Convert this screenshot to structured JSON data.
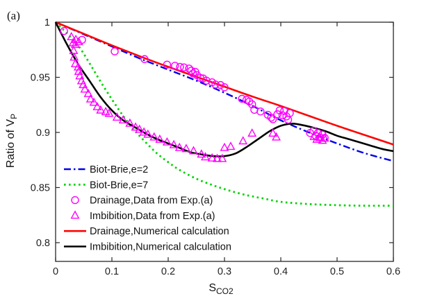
{
  "figure": {
    "panel_label": "(a)",
    "background": "#ffffff"
  },
  "chart_data": {
    "type": "line",
    "title": "",
    "grid": false,
    "axis_color": "#262626",
    "marker_color": "#ff00ff",
    "x_axis": {
      "label_main": "S",
      "label_sub": "CO2",
      "range": [
        0,
        0.6
      ],
      "ticks": [
        0,
        0.1,
        0.2,
        0.3,
        0.4,
        0.5,
        0.6
      ],
      "tick_labels": [
        "0",
        "0.1",
        "0.2",
        "0.3",
        "0.4",
        "0.5",
        "0.6"
      ]
    },
    "y_axis": {
      "label_main": "Ratio of V",
      "label_sub": "P",
      "range": [
        0.783,
        1.0
      ],
      "ticks": [
        0.8,
        0.85,
        0.9,
        0.95,
        1.0
      ],
      "tick_labels": [
        "0.8",
        "0.85",
        "0.9",
        "0.95",
        "1"
      ]
    },
    "legend_position": "lower-left-inside",
    "series": [
      {
        "id": "biot-brie-e2",
        "label": "Biot-Brie,e=2",
        "type": "line",
        "color": "#0000ee",
        "dash": "dashdot",
        "width": 2.4,
        "x": [
          0,
          0.05,
          0.1,
          0.15,
          0.2,
          0.25,
          0.3,
          0.35,
          0.4,
          0.45,
          0.5,
          0.55,
          0.6
        ],
        "y": [
          1.0,
          0.989,
          0.978,
          0.967,
          0.957,
          0.947,
          0.936,
          0.924,
          0.911,
          0.9,
          0.89,
          0.881,
          0.874
        ]
      },
      {
        "id": "biot-brie-e7",
        "label": "Biot-Brie,e=7",
        "type": "line",
        "color": "#00d400",
        "dash": "dot",
        "width": 2.8,
        "x": [
          0,
          0.02,
          0.04,
          0.06,
          0.08,
          0.1,
          0.12,
          0.14,
          0.16,
          0.18,
          0.2,
          0.22,
          0.25,
          0.28,
          0.31,
          0.34,
          0.37,
          0.4,
          0.45,
          0.5,
          0.55,
          0.6
        ],
        "y": [
          1.0,
          0.99,
          0.979,
          0.963,
          0.946,
          0.93,
          0.915,
          0.902,
          0.891,
          0.881,
          0.873,
          0.866,
          0.858,
          0.852,
          0.847,
          0.843,
          0.84,
          0.837,
          0.835,
          0.834,
          0.8335,
          0.8335
        ]
      },
      {
        "id": "drainage-data",
        "label": "Drainage,Data from Exp.(a)",
        "type": "scatter",
        "color": "#ff00ff",
        "marker": "circle",
        "points": [
          [
            0.015,
            0.992
          ],
          [
            0.047,
            0.984
          ],
          [
            0.105,
            0.9735
          ],
          [
            0.158,
            0.9665
          ],
          [
            0.198,
            0.9615
          ],
          [
            0.212,
            0.9605
          ],
          [
            0.221,
            0.9595
          ],
          [
            0.228,
            0.959
          ],
          [
            0.237,
            0.958
          ],
          [
            0.241,
            0.956
          ],
          [
            0.244,
            0.9535
          ],
          [
            0.248,
            0.955
          ],
          [
            0.251,
            0.952
          ],
          [
            0.257,
            0.9495
          ],
          [
            0.262,
            0.949
          ],
          [
            0.268,
            0.947
          ],
          [
            0.278,
            0.9455
          ],
          [
            0.284,
            0.9435
          ],
          [
            0.293,
            0.943
          ],
          [
            0.3,
            0.941
          ],
          [
            0.331,
            0.9305
          ],
          [
            0.339,
            0.9295
          ],
          [
            0.344,
            0.928
          ],
          [
            0.349,
            0.9255
          ],
          [
            0.353,
            0.9205
          ],
          [
            0.364,
            0.919
          ],
          [
            0.377,
            0.916
          ],
          [
            0.383,
            0.9135
          ],
          [
            0.386,
            0.912
          ],
          [
            0.394,
            0.9165
          ],
          [
            0.398,
            0.92
          ],
          [
            0.403,
            0.9155
          ],
          [
            0.406,
            0.9195
          ],
          [
            0.41,
            0.9145
          ],
          [
            0.413,
            0.9115
          ],
          [
            0.416,
            0.9175
          ],
          [
            0.452,
            0.8995
          ],
          [
            0.458,
            0.9015
          ],
          [
            0.462,
            0.897
          ],
          [
            0.466,
            0.8995
          ],
          [
            0.47,
            0.8955
          ],
          [
            0.474,
            0.898
          ],
          [
            0.478,
            0.895
          ]
        ]
      },
      {
        "id": "imbibition-data",
        "label": "Imbibition,Data from Exp.(a)",
        "type": "scatter",
        "color": "#ff00ff",
        "marker": "triangle",
        "points": [
          [
            0.028,
            0.9865
          ],
          [
            0.036,
            0.984
          ],
          [
            0.041,
            0.982
          ],
          [
            0.031,
            0.981
          ],
          [
            0.035,
            0.9795
          ],
          [
            0.032,
            0.974
          ],
          [
            0.033,
            0.968
          ],
          [
            0.035,
            0.962
          ],
          [
            0.04,
            0.959
          ],
          [
            0.041,
            0.955
          ],
          [
            0.043,
            0.951
          ],
          [
            0.046,
            0.9465
          ],
          [
            0.049,
            0.943
          ],
          [
            0.052,
            0.939
          ],
          [
            0.058,
            0.935
          ],
          [
            0.062,
            0.93
          ],
          [
            0.068,
            0.927
          ],
          [
            0.074,
            0.923
          ],
          [
            0.08,
            0.92
          ],
          [
            0.089,
            0.9185
          ],
          [
            0.095,
            0.917
          ],
          [
            0.109,
            0.9135
          ],
          [
            0.12,
            0.911
          ],
          [
            0.132,
            0.908
          ],
          [
            0.142,
            0.9045
          ],
          [
            0.149,
            0.9025
          ],
          [
            0.157,
            0.9
          ],
          [
            0.164,
            0.898
          ],
          [
            0.175,
            0.8955
          ],
          [
            0.185,
            0.8935
          ],
          [
            0.198,
            0.891
          ],
          [
            0.21,
            0.8885
          ],
          [
            0.22,
            0.886
          ],
          [
            0.232,
            0.885
          ],
          [
            0.245,
            0.883
          ],
          [
            0.259,
            0.88
          ],
          [
            0.266,
            0.8775
          ],
          [
            0.278,
            0.8765
          ],
          [
            0.287,
            0.876
          ],
          [
            0.296,
            0.876
          ],
          [
            0.3,
            0.886
          ],
          [
            0.311,
            0.887
          ],
          [
            0.333,
            0.892
          ],
          [
            0.349,
            0.899
          ],
          [
            0.386,
            0.899
          ],
          [
            0.392,
            0.8955
          ],
          [
            0.459,
            0.896
          ],
          [
            0.464,
            0.8935
          ],
          [
            0.469,
            0.895
          ],
          [
            0.474,
            0.8925
          ],
          [
            0.478,
            0.8945
          ]
        ]
      },
      {
        "id": "drainage-calc",
        "label": "Drainage,Numerical calculation",
        "type": "line",
        "color": "#ff0000",
        "dash": "solid",
        "width": 2.6,
        "x": [
          0,
          0.05,
          0.1,
          0.15,
          0.2,
          0.25,
          0.3,
          0.35,
          0.4,
          0.45,
          0.5,
          0.55,
          0.6
        ],
        "y": [
          1.0,
          0.9895,
          0.979,
          0.969,
          0.9595,
          0.9505,
          0.9415,
          0.9325,
          0.924,
          0.915,
          0.906,
          0.8975,
          0.889
        ]
      },
      {
        "id": "imbibition-calc",
        "label": "Imbibition,Numerical calculation",
        "type": "line",
        "color": "#000000",
        "dash": "solid",
        "width": 2.6,
        "x": [
          0,
          0.02,
          0.04,
          0.06,
          0.08,
          0.1,
          0.12,
          0.14,
          0.16,
          0.18,
          0.2,
          0.22,
          0.24,
          0.26,
          0.28,
          0.3,
          0.32,
          0.34,
          0.36,
          0.38,
          0.4,
          0.42,
          0.44,
          0.46,
          0.48,
          0.5,
          0.52,
          0.54,
          0.56,
          0.58,
          0.6
        ],
        "y": [
          1.0,
          0.98,
          0.962,
          0.947,
          0.932,
          0.92,
          0.911,
          0.905,
          0.899,
          0.894,
          0.89,
          0.886,
          0.882,
          0.88,
          0.8785,
          0.8785,
          0.881,
          0.887,
          0.894,
          0.901,
          0.906,
          0.908,
          0.9065,
          0.904,
          0.901,
          0.897,
          0.894,
          0.891,
          0.888,
          0.885,
          0.883
        ]
      }
    ]
  }
}
